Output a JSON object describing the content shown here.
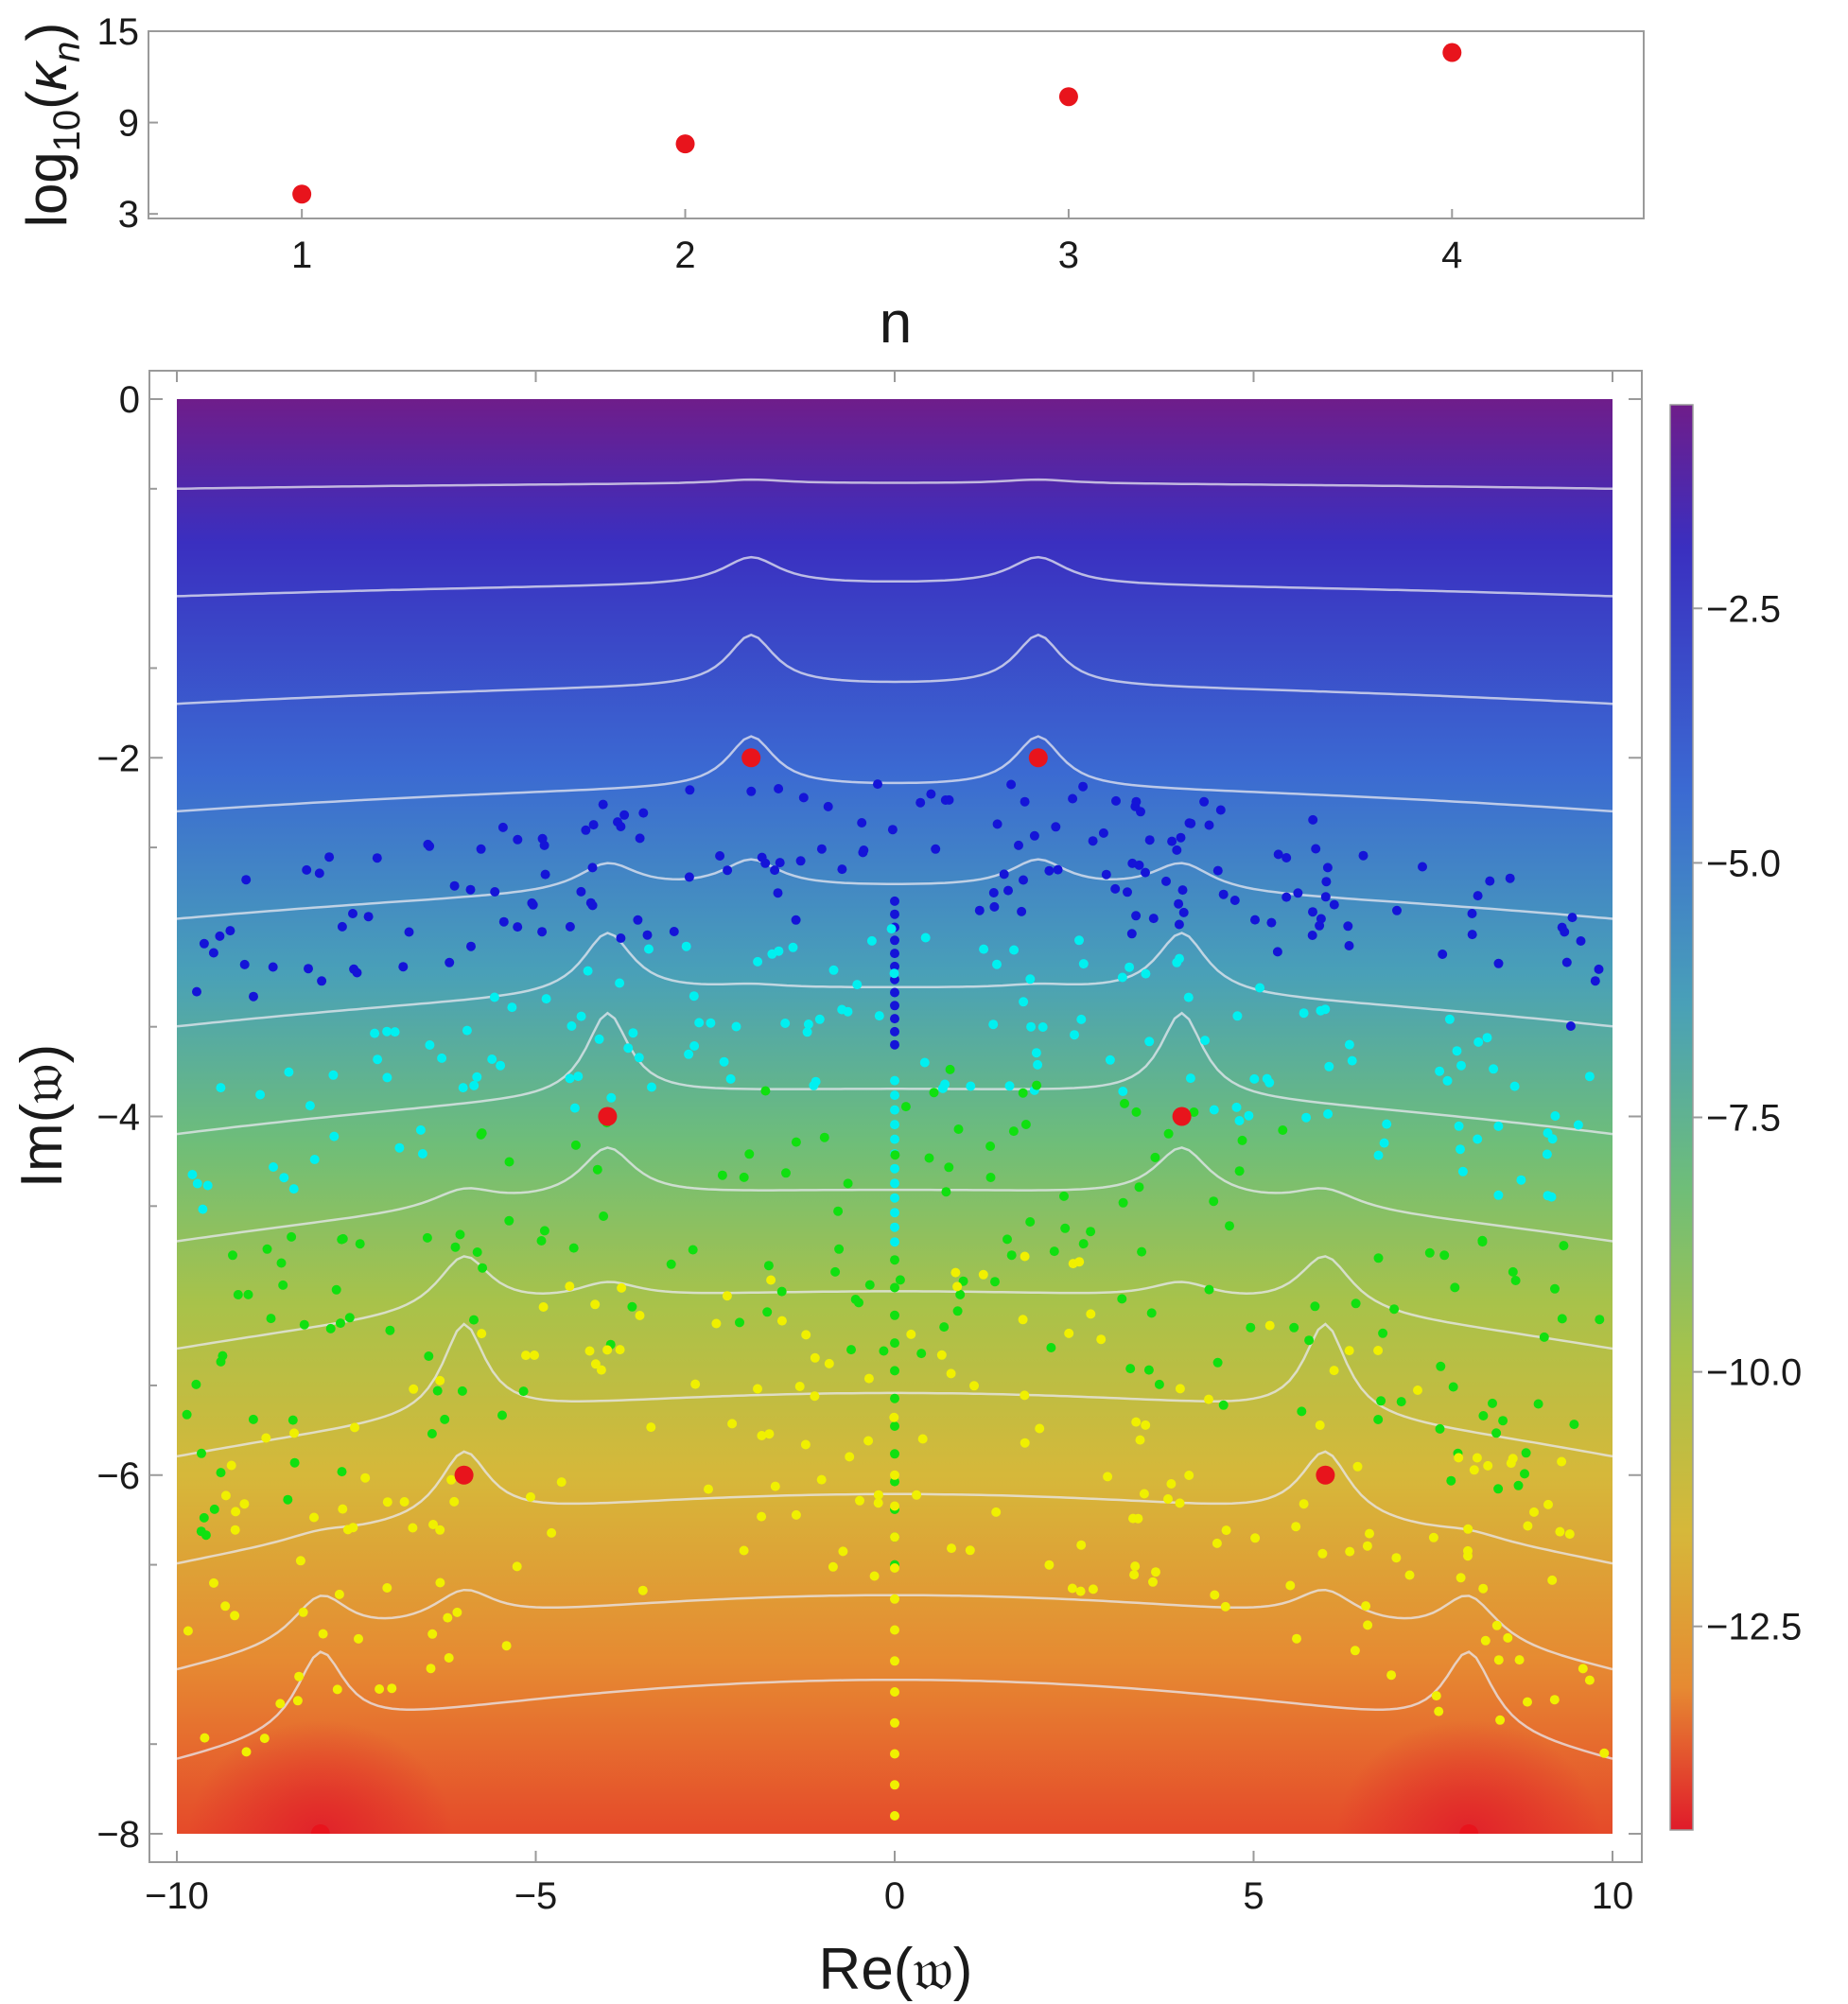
{
  "chart_data": [
    {
      "type": "scatter",
      "title": "",
      "xlabel": "n",
      "ylabel": "log10(κn)",
      "xlim": [
        0.6,
        4.5
      ],
      "ylim": [
        2.7,
        15
      ],
      "xticks": [
        1,
        2,
        3,
        4
      ],
      "yticks": [
        3,
        9,
        15
      ],
      "x": [
        1,
        2,
        3,
        4
      ],
      "values": [
        4.3,
        7.6,
        10.7,
        13.6
      ],
      "marker_color": "#e8141c"
    },
    {
      "type": "heatmap",
      "title": "",
      "xlabel": "Re(𝔴)",
      "ylabel": "Im(𝔴)",
      "xlim": [
        -10,
        10
      ],
      "ylim": [
        -8,
        0
      ],
      "xticks": [
        -10,
        -5,
        0,
        5,
        10
      ],
      "yticks": [
        0,
        -2,
        -4,
        -6,
        -8
      ],
      "colorbar": {
        "range": [
          -14.5,
          -0.5
        ],
        "ticks": [
          "-2.5",
          "-5.0",
          "-7.5",
          "-10.0",
          "-12.5"
        ],
        "tick_values": [
          -2.5,
          -5.0,
          -7.5,
          -10.0,
          -12.5
        ],
        "colors_top_to_bottom": [
          "#6f1d8a",
          "#3a2fc0",
          "#3b6ad2",
          "#49a0b8",
          "#6fbe78",
          "#a8c24a",
          "#d6b83a",
          "#e68a32",
          "#e54a2a",
          "#e01b2a"
        ]
      },
      "contour_color": "#e8e8f0",
      "red_points": [
        {
          "x": -2,
          "y": -2
        },
        {
          "x": 2,
          "y": -2
        },
        {
          "x": -4,
          "y": -4
        },
        {
          "x": 4,
          "y": -4
        },
        {
          "x": -6,
          "y": -6
        },
        {
          "x": 6,
          "y": -6
        },
        {
          "x": -8,
          "y": -8
        },
        {
          "x": 8,
          "y": -8
        }
      ],
      "point_series": [
        {
          "color": "#1414d8",
          "y_band": [
            -3.6,
            -2.8
          ]
        },
        {
          "color": "#00f0f0",
          "y_band": [
            -4.7,
            -3.8
          ]
        },
        {
          "color": "#10e010",
          "y_band": [
            -6.5,
            -4.8
          ]
        },
        {
          "color": "#f0f000",
          "y_band": [
            -7.9,
            -6.0
          ]
        }
      ],
      "red_color": "#e8141c"
    }
  ]
}
